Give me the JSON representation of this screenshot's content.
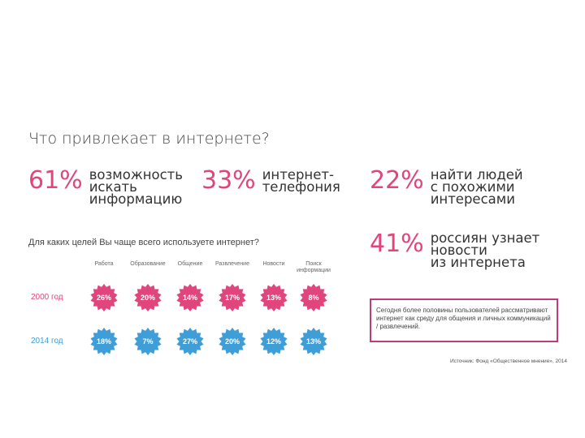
{
  "title": "Что привлекает в интернете?",
  "stats": [
    {
      "percent": "61%",
      "line1": "возможность",
      "line2": "искать",
      "line3": "информацию"
    },
    {
      "percent": "33%",
      "line1": "интернет-",
      "line2": "телефония",
      "line3": ""
    },
    {
      "percent": "22%",
      "line1": "найти людей",
      "line2": "с похожими",
      "line3": "интересами"
    },
    {
      "percent": "41%",
      "line1": "россиян узнает",
      "line2": "новости",
      "line3": "из интернета"
    }
  ],
  "survey": {
    "question": "Для каких целей Вы чаще всего используете интернет?",
    "columns": [
      "Работа",
      "Образование",
      "Общение",
      "Развлечение",
      "Новости",
      "Поиск информации"
    ],
    "rows": [
      {
        "year": "2000 год",
        "color": "#e0457b",
        "values": [
          "26%",
          "20%",
          "14%",
          "17%",
          "13%",
          "8%"
        ]
      },
      {
        "year": "2014 год",
        "color": "#3f9ed8",
        "values": [
          "18%",
          "7%",
          "27%",
          "20%",
          "12%",
          "13%"
        ]
      }
    ]
  },
  "callout": {
    "text": "Сегодня более половины пользователей рассматривают интернет как среду для общения и личных коммуникаций / развлечений.",
    "border_color": "#c23b79"
  },
  "source": "Источник: Фонд «Общественное мнение», 2014"
}
